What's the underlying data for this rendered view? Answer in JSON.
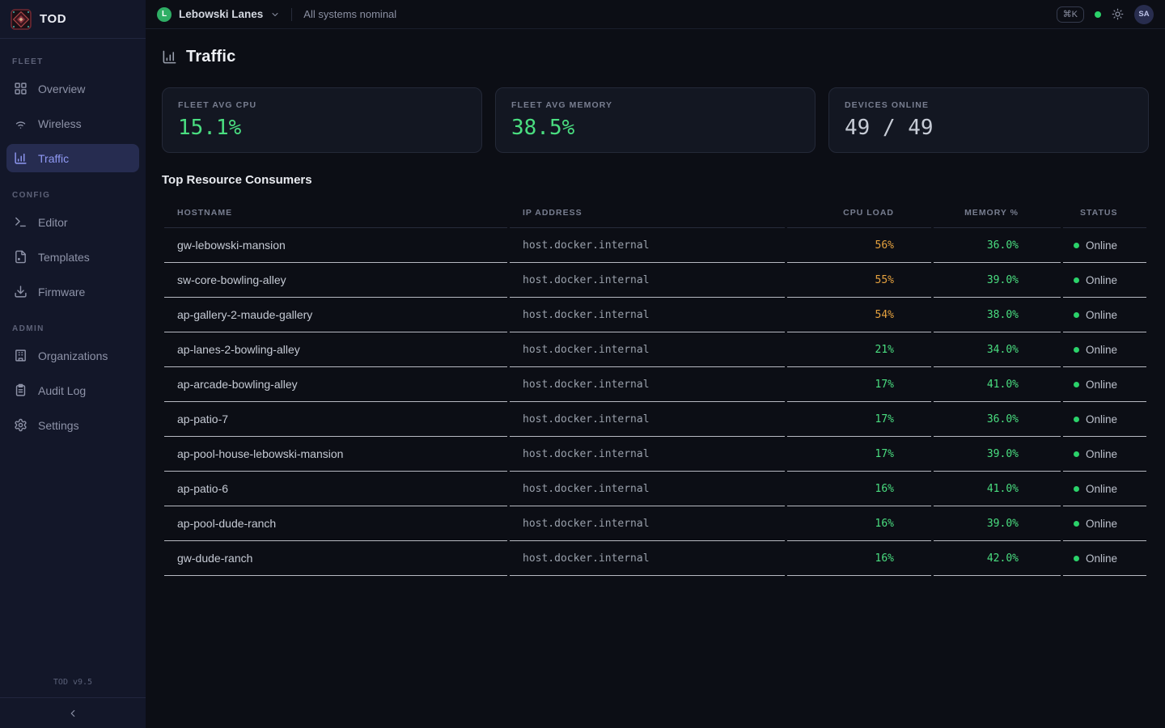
{
  "brand": {
    "name": "TOD",
    "version": "TOD v9.5"
  },
  "topbar": {
    "org_initial": "L",
    "org_name": "Lebowski Lanes",
    "status_text": "All systems nominal",
    "kbd_shortcut": "⌘K",
    "user_initials": "SA"
  },
  "sidebar": {
    "sections": [
      {
        "label": "FLEET",
        "items": [
          {
            "label": "Overview",
            "icon": "layout-grid",
            "active": false
          },
          {
            "label": "Wireless",
            "icon": "wifi",
            "active": false
          },
          {
            "label": "Traffic",
            "icon": "chart-column",
            "active": true
          }
        ]
      },
      {
        "label": "CONFIG",
        "items": [
          {
            "label": "Editor",
            "icon": "terminal",
            "active": false
          },
          {
            "label": "Templates",
            "icon": "file",
            "active": false
          },
          {
            "label": "Firmware",
            "icon": "download",
            "active": false
          }
        ]
      },
      {
        "label": "ADMIN",
        "items": [
          {
            "label": "Organizations",
            "icon": "building",
            "active": false
          },
          {
            "label": "Audit Log",
            "icon": "clipboard-list",
            "active": false
          },
          {
            "label": "Settings",
            "icon": "gear",
            "active": false
          }
        ]
      }
    ]
  },
  "page": {
    "title": "Traffic",
    "title_icon": "chart-column",
    "section_title": "Top Resource Consumers"
  },
  "stats": [
    {
      "label": "FLEET AVG CPU",
      "value": "15.1%",
      "tone": "green"
    },
    {
      "label": "FLEET AVG MEMORY",
      "value": "38.5%",
      "tone": "green"
    },
    {
      "label": "DEVICES ONLINE",
      "value": "49 / 49",
      "tone": "gray"
    }
  ],
  "table": {
    "columns": [
      "HOSTNAME",
      "IP ADDRESS",
      "CPU LOAD",
      "MEMORY %",
      "STATUS"
    ],
    "rows": [
      {
        "hostname": "gw-lebowski-mansion",
        "ip": "host.docker.internal",
        "cpu": "56%",
        "cpu_high": true,
        "memory": "36.0%",
        "status": "Online"
      },
      {
        "hostname": "sw-core-bowling-alley",
        "ip": "host.docker.internal",
        "cpu": "55%",
        "cpu_high": true,
        "memory": "39.0%",
        "status": "Online"
      },
      {
        "hostname": "ap-gallery-2-maude-gallery",
        "ip": "host.docker.internal",
        "cpu": "54%",
        "cpu_high": true,
        "memory": "38.0%",
        "status": "Online"
      },
      {
        "hostname": "ap-lanes-2-bowling-alley",
        "ip": "host.docker.internal",
        "cpu": "21%",
        "cpu_high": false,
        "memory": "34.0%",
        "status": "Online"
      },
      {
        "hostname": "ap-arcade-bowling-alley",
        "ip": "host.docker.internal",
        "cpu": "17%",
        "cpu_high": false,
        "memory": "41.0%",
        "status": "Online"
      },
      {
        "hostname": "ap-patio-7",
        "ip": "host.docker.internal",
        "cpu": "17%",
        "cpu_high": false,
        "memory": "36.0%",
        "status": "Online"
      },
      {
        "hostname": "ap-pool-house-lebowski-mansion",
        "ip": "host.docker.internal",
        "cpu": "17%",
        "cpu_high": false,
        "memory": "39.0%",
        "status": "Online"
      },
      {
        "hostname": "ap-patio-6",
        "ip": "host.docker.internal",
        "cpu": "16%",
        "cpu_high": false,
        "memory": "41.0%",
        "status": "Online"
      },
      {
        "hostname": "ap-pool-dude-ranch",
        "ip": "host.docker.internal",
        "cpu": "16%",
        "cpu_high": false,
        "memory": "39.0%",
        "status": "Online"
      },
      {
        "hostname": "gw-dude-ranch",
        "ip": "host.docker.internal",
        "cpu": "16%",
        "cpu_high": false,
        "memory": "42.0%",
        "status": "Online"
      }
    ]
  },
  "colors": {
    "green": "#4ade80",
    "orange": "#e6a23f",
    "dot-green": "#2bd26a",
    "accent": "#9099f4"
  }
}
